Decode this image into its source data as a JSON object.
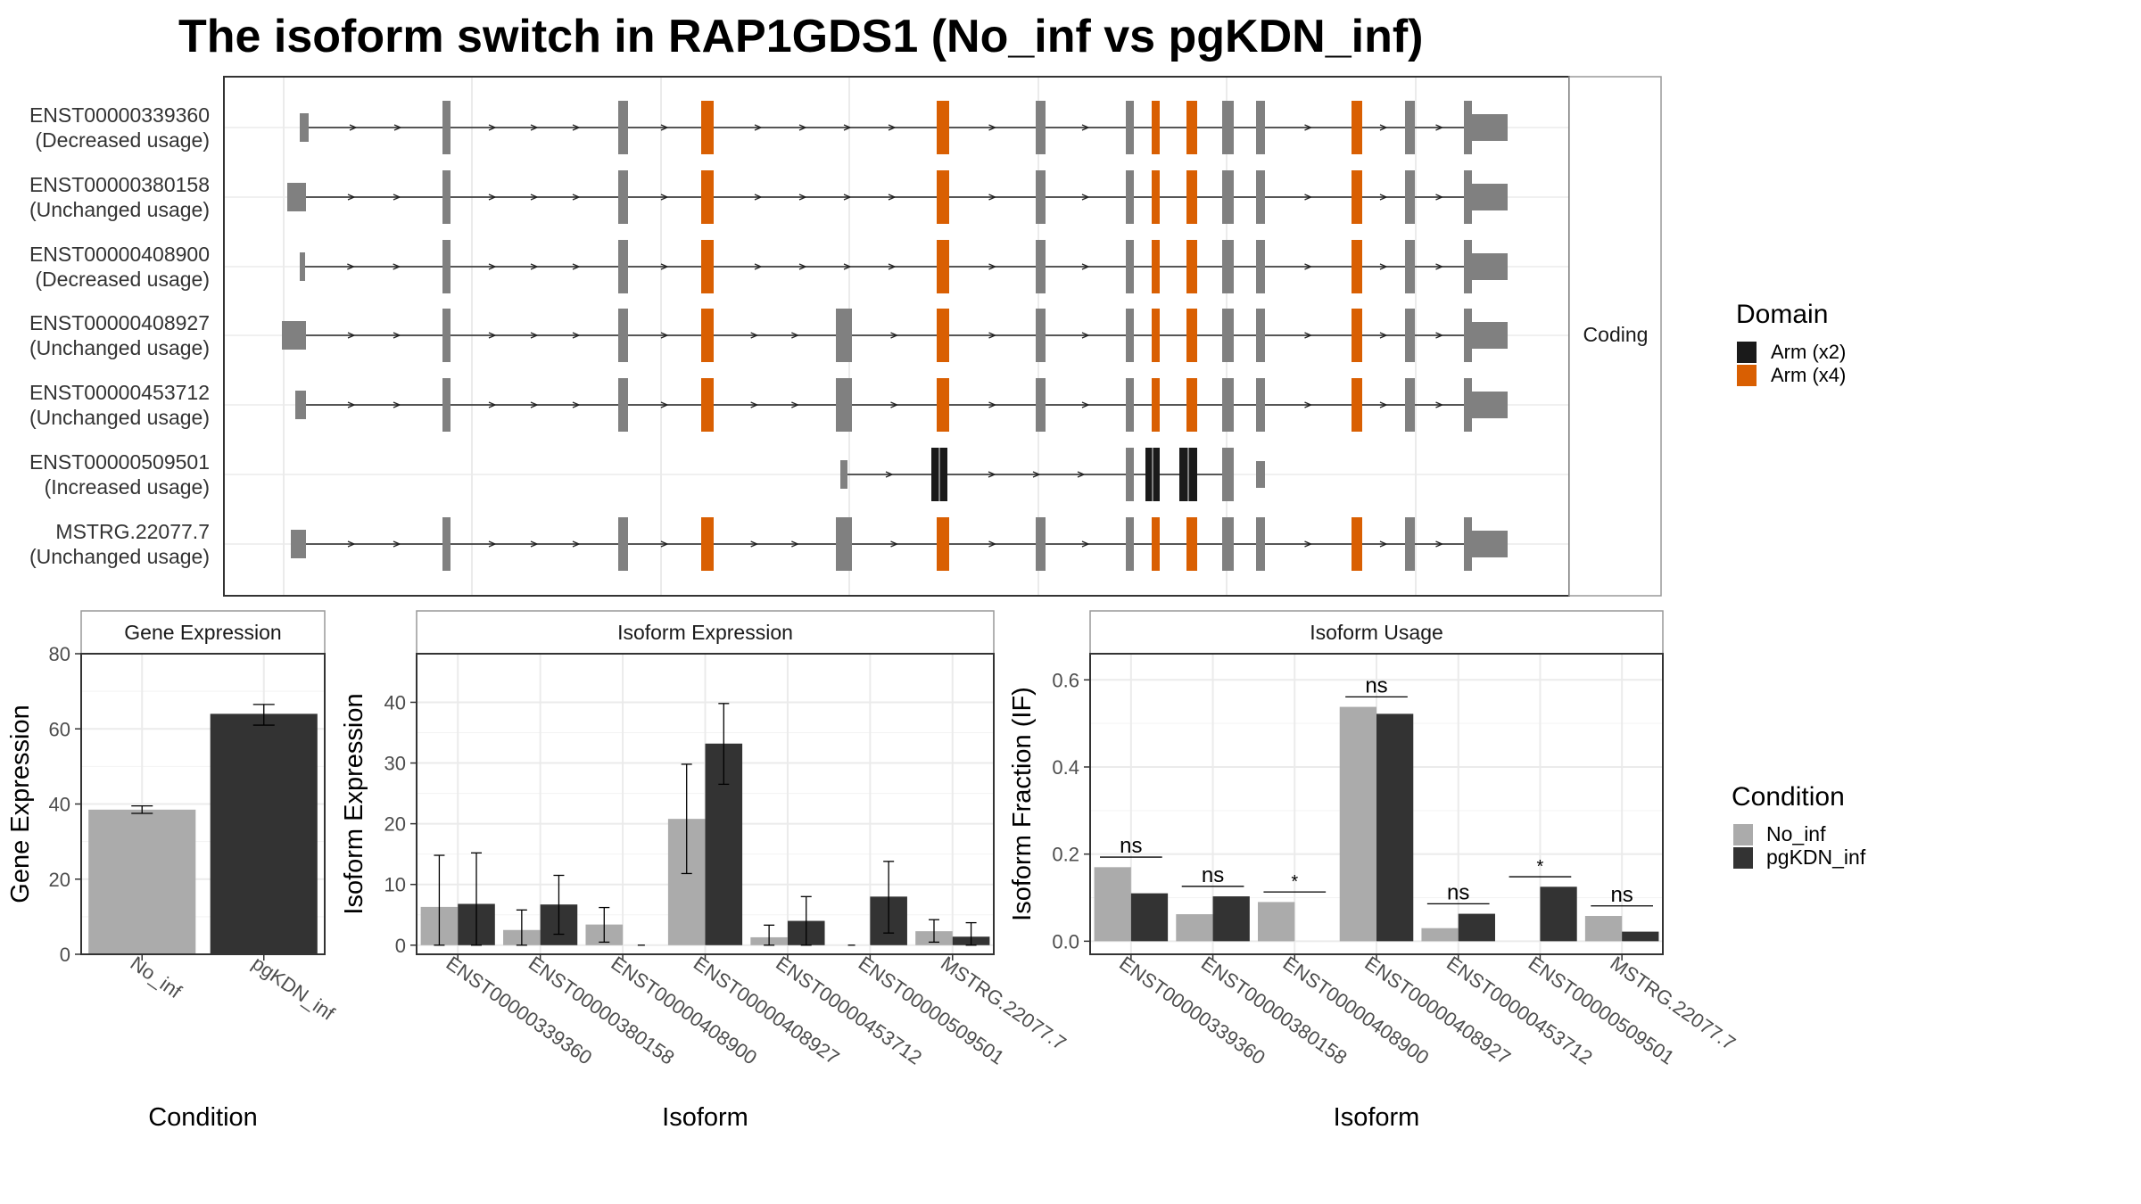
{
  "title": "The isoform switch in RAP1GDS1 (No_inf vs pgKDN_inf)",
  "colors": {
    "no_inf": "#ABABAB",
    "pgkdn_inf": "#333333",
    "arm_x2": "#1A1A1A",
    "arm_x4": "#D95F02",
    "exon": "#808080"
  },
  "chart_data": [
    {
      "type": "other",
      "name": "isoform structures",
      "strip_label": "Coding",
      "legend_title": "Domain",
      "legend": [
        {
          "label": "Arm (x2)",
          "color": "#1A1A1A"
        },
        {
          "label": "Arm (x4)",
          "color": "#D95F02"
        }
      ],
      "isoforms": [
        {
          "id": "ENST00000339360",
          "usage": "(Decreased usage)"
        },
        {
          "id": "ENST00000380158",
          "usage": "(Unchanged usage)"
        },
        {
          "id": "ENST00000408900",
          "usage": "(Decreased usage)"
        },
        {
          "id": "ENST00000408927",
          "usage": "(Unchanged usage)"
        },
        {
          "id": "ENST00000453712",
          "usage": "(Unchanged usage)"
        },
        {
          "id": "ENST00000509501",
          "usage": "(Increased usage)"
        },
        {
          "id": "MSTRG.22077.7",
          "usage": "(Unchanged usage)"
        }
      ]
    },
    {
      "type": "bar",
      "strip_label": "Gene Expression",
      "xlabel": "Condition",
      "ylabel": "Gene Expression",
      "categories": [
        "No_inf",
        "pgKDN_inf"
      ],
      "values": [
        38.5,
        64
      ],
      "errors": [
        [
          37.5,
          39.5
        ],
        [
          61,
          66.5
        ]
      ],
      "ylim": [
        0,
        80
      ],
      "yticks": [
        0,
        20,
        40,
        60,
        80
      ]
    },
    {
      "type": "bar",
      "strip_label": "Isoform Expression",
      "xlabel": "Isoform",
      "ylabel": "Isoform Expression",
      "categories": [
        "ENST00000339360",
        "ENST00000380158",
        "ENST00000408900",
        "ENST00000408927",
        "ENST00000453712",
        "ENST00000509501",
        "MSTRG.22077.7"
      ],
      "series": [
        {
          "name": "No_inf",
          "values": [
            6.3,
            2.5,
            3.4,
            20.8,
            1.3,
            0,
            2.3
          ],
          "errors": [
            [
              0,
              14.8
            ],
            [
              0,
              5.8
            ],
            [
              0.5,
              6.2
            ],
            [
              11.8,
              29.8
            ],
            [
              0,
              3.3
            ],
            [
              0,
              0
            ],
            [
              0.5,
              4.2
            ]
          ]
        },
        {
          "name": "pgKDN_inf",
          "values": [
            6.8,
            6.7,
            0,
            33.2,
            4.0,
            8.0,
            1.4
          ],
          "errors": [
            [
              0,
              15.2
            ],
            [
              1.8,
              11.5
            ],
            [
              0,
              0
            ],
            [
              26.5,
              39.8
            ],
            [
              0,
              8.0
            ],
            [
              2.0,
              13.8
            ],
            [
              0,
              3.7
            ]
          ]
        }
      ],
      "ylim": [
        -1.5,
        48
      ],
      "yticks": [
        0,
        10,
        20,
        30,
        40
      ]
    },
    {
      "type": "bar",
      "strip_label": "Isoform Usage",
      "xlabel": "Isoform",
      "ylabel": "Isoform Fraction (IF)",
      "categories": [
        "ENST00000339360",
        "ENST00000380158",
        "ENST00000408900",
        "ENST00000408927",
        "ENST00000453712",
        "ENST00000509501",
        "MSTRG.22077.7"
      ],
      "series": [
        {
          "name": "No_inf",
          "values": [
            0.17,
            0.062,
            0.09,
            0.538,
            0.03,
            0,
            0.058
          ]
        },
        {
          "name": "pgKDN_inf",
          "values": [
            0.11,
            0.103,
            0,
            0.522,
            0.063,
            0.125,
            0.022
          ]
        }
      ],
      "significance": [
        "ns",
        "ns",
        "*",
        "ns",
        "ns",
        "*",
        "ns"
      ],
      "sig_heights": [
        0.193,
        0.126,
        0.113,
        0.561,
        0.086,
        0.148,
        0.081
      ],
      "ylim": [
        -0.03,
        0.66
      ],
      "yticks": [
        0.0,
        0.2,
        0.4,
        0.6
      ],
      "ytick_labels": [
        "0.0",
        "0.2",
        "0.4",
        "0.6"
      ]
    }
  ],
  "condition_legend": {
    "title": "Condition",
    "items": [
      {
        "label": "No_inf",
        "color": "#ABABAB"
      },
      {
        "label": "pgKDN_inf",
        "color": "#333333"
      }
    ]
  }
}
